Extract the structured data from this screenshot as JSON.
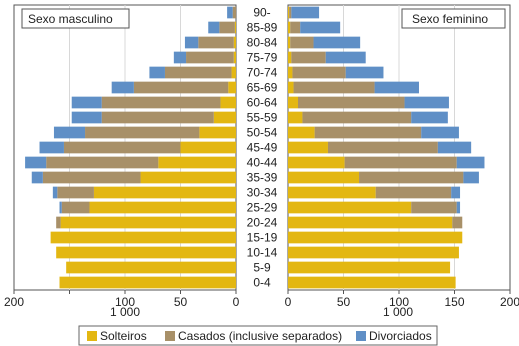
{
  "chart_data": {
    "type": "bar",
    "orientation": "horizontal-population-pyramid",
    "categories": [
      "0-4",
      "5-9",
      "10-14",
      "15-19",
      "20-24",
      "25-29",
      "30-34",
      "35-39",
      "40-44",
      "45-49",
      "50-54",
      "55-59",
      "60-64",
      "65-69",
      "70-74",
      "75-79",
      "80-84",
      "85-89",
      "90-"
    ],
    "panels": [
      {
        "title": "Sexo masculino",
        "series": [
          {
            "name": "Solteiros",
            "values": [
              159,
              153,
              162,
              167,
              158,
              132,
              128,
              86,
              70,
              50,
              33,
              20,
              14,
              7,
              4,
              2,
              2,
              1,
              0
            ]
          },
          {
            "name": "Casados (inclusive separados)",
            "values": [
              0,
              0,
              0,
              0,
              4,
              25,
              33,
              88,
              101,
              105,
              103,
              101,
              107,
              85,
              60,
              43,
              32,
              14,
              3
            ]
          },
          {
            "name": "Divorciados",
            "values": [
              0,
              0,
              0,
              0,
              0,
              2,
              4,
              10,
              19,
              22,
              28,
              27,
              27,
              20,
              14,
              11,
              12,
              10,
              5
            ]
          }
        ]
      },
      {
        "title": "Sexo feminino",
        "series": [
          {
            "name": "Solteiros",
            "values": [
              151,
              146,
              154,
              157,
              148,
              111,
              79,
              64,
              51,
              36,
              24,
              13,
              9,
              5,
              4,
              3,
              2,
              2,
              1
            ]
          },
          {
            "name": "Casados (inclusive separados)",
            "values": [
              0,
              0,
              0,
              0,
              9,
              41,
              68,
              94,
              101,
              99,
              96,
              98,
              96,
              73,
              48,
              31,
              21,
              9,
              2
            ]
          },
          {
            "name": "Divorciados",
            "values": [
              0,
              0,
              0,
              0,
              0,
              3,
              8,
              14,
              25,
              30,
              34,
              33,
              40,
              40,
              34,
              36,
              42,
              36,
              25
            ]
          }
        ]
      }
    ],
    "xaxis": {
      "ticks_left": [
        200,
        150,
        100,
        50,
        0
      ],
      "ticks_right": [
        0,
        50,
        100,
        150,
        200
      ],
      "tick_labels_left": [
        "200",
        "",
        "100",
        "50",
        "0"
      ],
      "tick_labels_right": [
        "0",
        "50",
        "100",
        "150",
        "200"
      ],
      "unit_label": "1 000",
      "xlim": [
        0,
        200
      ]
    },
    "colors": {
      "Solteiros": "#e3b712",
      "Casados (inclusive separados)": "#a89068",
      "Divorciados": "#5f8fc6"
    },
    "legend": {
      "position": "bottom",
      "items": [
        "Solteiros",
        "Casados (inclusive separados)",
        "Divorciados"
      ]
    }
  }
}
